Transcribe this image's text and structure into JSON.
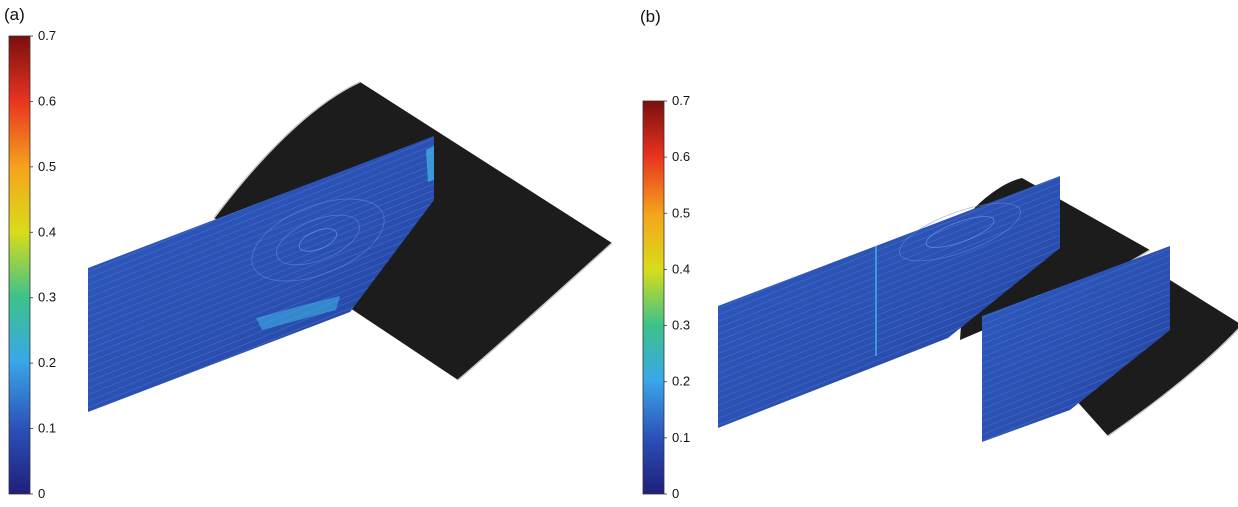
{
  "panels": [
    {
      "label": "(a)",
      "colorbar": {
        "min": 0,
        "max": 0.7,
        "ticks": [
          "0",
          "0.1",
          "0.2",
          "0.3",
          "0.4",
          "0.5",
          "0.6",
          "0.7"
        ]
      }
    },
    {
      "label": "(b)",
      "colorbar": {
        "min": 0,
        "max": 0.7,
        "ticks": [
          "0",
          "0.1",
          "0.2",
          "0.3",
          "0.4",
          "0.5",
          "0.6",
          "0.7"
        ]
      }
    }
  ],
  "colormap": [
    "#1f1f7a",
    "#2b4fb8",
    "#3aa7e8",
    "#3cc28a",
    "#d8dc1a",
    "#f5a51c",
    "#e8331f",
    "#7a0f0f"
  ],
  "colors": {
    "wing_body": "#1c1c1c",
    "wing_edge": "#c8c8c8",
    "plane_base": "#2a52b8",
    "plane_dark": "#1f3d96",
    "highlight": "#45c6ee"
  }
}
